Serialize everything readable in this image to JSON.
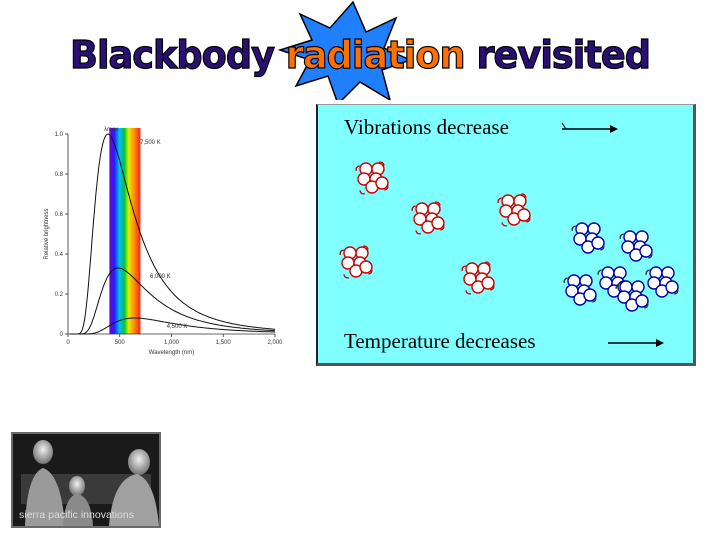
{
  "title": {
    "part1": "Blackbody ",
    "part2": "radiation",
    "part3": " revisited",
    "color_outer": "#2a1072",
    "color_highlight": "#ff7000",
    "starburst_color": "#1f7fff"
  },
  "chart_data": {
    "type": "line",
    "xlabel": "Wavelength (nm)",
    "ylabel": "Relative brightness",
    "xlim": [
      0,
      2000
    ],
    "ylim": [
      0,
      1.0
    ],
    "x_ticks": [
      "0",
      "500",
      "1,000",
      "1,500",
      "2,000"
    ],
    "y_ticks": [
      "0",
      "0.2",
      "0.4",
      "0.6",
      "0.8",
      "1.0"
    ],
    "peak_label": "λmax",
    "series": [
      {
        "name": "7,500 K",
        "temperature_k": 7500,
        "peak_value": 1.0
      },
      {
        "name": "6,000 K",
        "temperature_k": 6000,
        "peak_value": 0.33
      },
      {
        "name": "4,500 K",
        "temperature_k": 4500,
        "peak_value": 0.08
      }
    ],
    "visible_band_nm": [
      400,
      700
    ]
  },
  "diagram": {
    "top_caption": "Vibrations decrease",
    "bottom_caption": "Temperature decreases",
    "background": "#7fffff",
    "atom_color": "#cc0000",
    "cold_atom_color": "#0000aa"
  },
  "photo": {
    "caption": "sierra pacific innovations"
  }
}
